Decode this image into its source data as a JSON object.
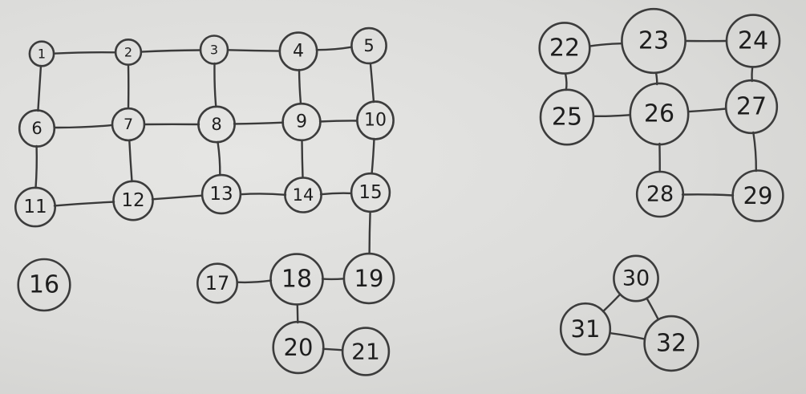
{
  "board": {
    "background": "#d9d9d7",
    "ink": "#2a2a2a"
  },
  "graph": {
    "nodes": [
      {
        "id": "1",
        "label": "1"
      },
      {
        "id": "2",
        "label": "2"
      },
      {
        "id": "3",
        "label": "3"
      },
      {
        "id": "4",
        "label": "4"
      },
      {
        "id": "5",
        "label": "5"
      },
      {
        "id": "6",
        "label": "6"
      },
      {
        "id": "7",
        "label": "7"
      },
      {
        "id": "8",
        "label": "8"
      },
      {
        "id": "9",
        "label": "9"
      },
      {
        "id": "10",
        "label": "10"
      },
      {
        "id": "11",
        "label": "11"
      },
      {
        "id": "12",
        "label": "12"
      },
      {
        "id": "13",
        "label": "13"
      },
      {
        "id": "14",
        "label": "14"
      },
      {
        "id": "15",
        "label": "15"
      },
      {
        "id": "16",
        "label": "16"
      },
      {
        "id": "17",
        "label": "17"
      },
      {
        "id": "18",
        "label": "18"
      },
      {
        "id": "19",
        "label": "19"
      },
      {
        "id": "20",
        "label": "20"
      },
      {
        "id": "21",
        "label": "21"
      },
      {
        "id": "22",
        "label": "22"
      },
      {
        "id": "23",
        "label": "23"
      },
      {
        "id": "24",
        "label": "24"
      },
      {
        "id": "25",
        "label": "25"
      },
      {
        "id": "26",
        "label": "26"
      },
      {
        "id": "27",
        "label": "27"
      },
      {
        "id": "28",
        "label": "28"
      },
      {
        "id": "29",
        "label": "29"
      },
      {
        "id": "30",
        "label": "30"
      },
      {
        "id": "31",
        "label": "31"
      },
      {
        "id": "32",
        "label": "32"
      }
    ],
    "edges": [
      [
        "1",
        "2"
      ],
      [
        "2",
        "3"
      ],
      [
        "3",
        "4"
      ],
      [
        "4",
        "5"
      ],
      [
        "1",
        "6"
      ],
      [
        "2",
        "7"
      ],
      [
        "3",
        "8"
      ],
      [
        "4",
        "9"
      ],
      [
        "5",
        "10"
      ],
      [
        "6",
        "7"
      ],
      [
        "7",
        "8"
      ],
      [
        "8",
        "9"
      ],
      [
        "9",
        "10"
      ],
      [
        "6",
        "11"
      ],
      [
        "7",
        "12"
      ],
      [
        "8",
        "13"
      ],
      [
        "9",
        "14"
      ],
      [
        "10",
        "15"
      ],
      [
        "11",
        "12"
      ],
      [
        "12",
        "13"
      ],
      [
        "13",
        "14"
      ],
      [
        "14",
        "15"
      ],
      [
        "15",
        "19"
      ],
      [
        "17",
        "18"
      ],
      [
        "18",
        "19"
      ],
      [
        "18",
        "20"
      ],
      [
        "20",
        "21"
      ],
      [
        "22",
        "23"
      ],
      [
        "23",
        "24"
      ],
      [
        "22",
        "25"
      ],
      [
        "23",
        "26"
      ],
      [
        "24",
        "27"
      ],
      [
        "25",
        "26"
      ],
      [
        "26",
        "27"
      ],
      [
        "26",
        "28"
      ],
      [
        "27",
        "29"
      ],
      [
        "28",
        "29"
      ],
      [
        "30",
        "31"
      ],
      [
        "30",
        "32"
      ],
      [
        "31",
        "32"
      ]
    ]
  }
}
